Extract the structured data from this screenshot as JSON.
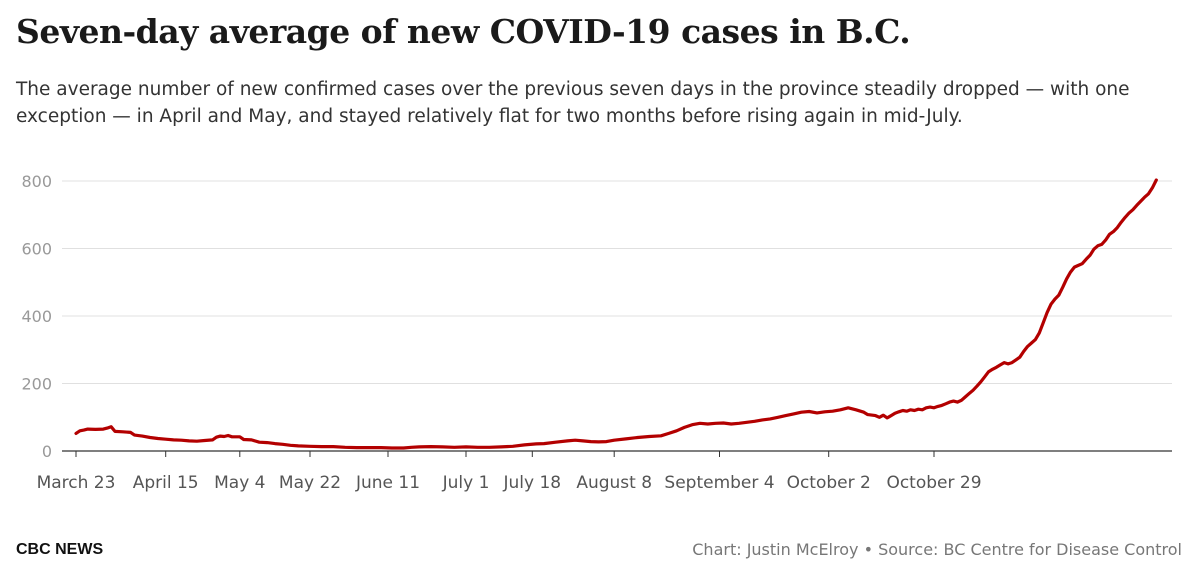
{
  "header": {
    "title": "Seven-day average of new COVID-19 cases in B.C.",
    "subtitle": "The average number of new confirmed cases over the previous seven days in the province steadily dropped — with one exception — in April and May, and stayed relatively flat for two months before rising again in mid-July."
  },
  "footer": {
    "brand": "CBC NEWS",
    "credit": "Chart: Justin McElroy • Source: BC Centre for Disease Control"
  },
  "chart_data": {
    "type": "line",
    "title": "Seven-day average of new COVID-19 cases in B.C.",
    "xlabel": "",
    "ylabel": "",
    "ylim": [
      0,
      800
    ],
    "yticks": [
      0,
      200,
      400,
      600,
      800
    ],
    "grid": true,
    "line_color": "#b30000",
    "grid_color": "#e0e0e0",
    "x_ticks": [
      {
        "label": "March 23",
        "day": 0
      },
      {
        "label": "April 15",
        "day": 23
      },
      {
        "label": "May 4",
        "day": 42
      },
      {
        "label": "May 22",
        "day": 60
      },
      {
        "label": "June 11",
        "day": 80
      },
      {
        "label": "July 1",
        "day": 100
      },
      {
        "label": "July 18",
        "day": 117
      },
      {
        "label": "August 8",
        "day": 138
      },
      {
        "label": "September 4",
        "day": 165
      },
      {
        "label": "October 2",
        "day": 193
      },
      {
        "label": "October 29",
        "day": 220
      }
    ],
    "series": [
      {
        "values": [
          [
            0,
            52
          ],
          [
            1,
            60
          ],
          [
            2,
            62
          ],
          [
            3,
            65
          ],
          [
            5,
            64
          ],
          [
            7,
            65
          ],
          [
            8,
            68
          ],
          [
            9,
            72
          ],
          [
            10,
            58
          ],
          [
            12,
            57
          ],
          [
            14,
            55
          ],
          [
            15,
            47
          ],
          [
            17,
            44
          ],
          [
            19,
            40
          ],
          [
            21,
            37
          ],
          [
            23,
            35
          ],
          [
            25,
            33
          ],
          [
            27,
            32
          ],
          [
            29,
            30
          ],
          [
            31,
            29
          ],
          [
            33,
            31
          ],
          [
            35,
            33
          ],
          [
            36,
            41
          ],
          [
            37,
            44
          ],
          [
            38,
            43
          ],
          [
            39,
            46
          ],
          [
            40,
            42
          ],
          [
            42,
            42
          ],
          [
            43,
            34
          ],
          [
            45,
            33
          ],
          [
            47,
            26
          ],
          [
            49,
            25
          ],
          [
            51,
            22
          ],
          [
            53,
            20
          ],
          [
            55,
            17
          ],
          [
            57,
            15
          ],
          [
            60,
            14
          ],
          [
            63,
            13
          ],
          [
            66,
            13
          ],
          [
            69,
            11
          ],
          [
            72,
            10
          ],
          [
            75,
            10
          ],
          [
            78,
            10
          ],
          [
            81,
            9
          ],
          [
            84,
            9
          ],
          [
            86,
            11
          ],
          [
            88,
            12
          ],
          [
            91,
            13
          ],
          [
            94,
            12
          ],
          [
            97,
            11
          ],
          [
            100,
            12
          ],
          [
            103,
            11
          ],
          [
            106,
            11
          ],
          [
            109,
            12
          ],
          [
            112,
            14
          ],
          [
            115,
            18
          ],
          [
            118,
            21
          ],
          [
            120,
            22
          ],
          [
            123,
            26
          ],
          [
            126,
            30
          ],
          [
            128,
            32
          ],
          [
            130,
            30
          ],
          [
            132,
            28
          ],
          [
            134,
            27
          ],
          [
            136,
            28
          ],
          [
            138,
            32
          ],
          [
            141,
            36
          ],
          [
            144,
            40
          ],
          [
            147,
            43
          ],
          [
            150,
            45
          ],
          [
            152,
            52
          ],
          [
            154,
            60
          ],
          [
            156,
            70
          ],
          [
            158,
            78
          ],
          [
            160,
            82
          ],
          [
            162,
            80
          ],
          [
            164,
            82
          ],
          [
            166,
            83
          ],
          [
            168,
            80
          ],
          [
            170,
            82
          ],
          [
            172,
            85
          ],
          [
            174,
            88
          ],
          [
            176,
            92
          ],
          [
            178,
            95
          ],
          [
            180,
            100
          ],
          [
            182,
            105
          ],
          [
            184,
            110
          ],
          [
            186,
            115
          ],
          [
            188,
            117
          ],
          [
            190,
            113
          ],
          [
            192,
            116
          ],
          [
            194,
            118
          ],
          [
            196,
            122
          ],
          [
            198,
            128
          ],
          [
            200,
            122
          ],
          [
            202,
            115
          ],
          [
            203,
            108
          ],
          [
            205,
            105
          ],
          [
            206,
            100
          ],
          [
            207,
            106
          ],
          [
            208,
            98
          ],
          [
            209,
            105
          ],
          [
            210,
            112
          ],
          [
            211,
            116
          ],
          [
            212,
            120
          ],
          [
            213,
            118
          ],
          [
            214,
            122
          ],
          [
            215,
            120
          ],
          [
            216,
            124
          ],
          [
            217,
            122
          ],
          [
            218,
            128
          ],
          [
            219,
            130
          ],
          [
            220,
            128
          ],
          [
            221,
            132
          ],
          [
            222,
            135
          ],
          [
            223,
            140
          ],
          [
            224,
            145
          ],
          [
            225,
            148
          ],
          [
            226,
            145
          ],
          [
            227,
            150
          ],
          [
            228,
            160
          ],
          [
            229,
            170
          ],
          [
            230,
            180
          ],
          [
            231,
            192
          ],
          [
            232,
            205
          ],
          [
            233,
            220
          ],
          [
            234,
            235
          ],
          [
            235,
            242
          ],
          [
            236,
            248
          ],
          [
            237,
            255
          ],
          [
            238,
            262
          ],
          [
            239,
            258
          ],
          [
            240,
            262
          ],
          [
            241,
            270
          ],
          [
            242,
            278
          ],
          [
            243,
            295
          ],
          [
            244,
            310
          ],
          [
            245,
            320
          ],
          [
            246,
            330
          ],
          [
            247,
            350
          ],
          [
            248,
            380
          ],
          [
            249,
            410
          ],
          [
            250,
            435
          ],
          [
            251,
            450
          ],
          [
            252,
            462
          ],
          [
            253,
            485
          ],
          [
            254,
            510
          ],
          [
            255,
            530
          ],
          [
            256,
            545
          ],
          [
            257,
            550
          ],
          [
            258,
            555
          ],
          [
            259,
            568
          ],
          [
            260,
            580
          ],
          [
            261,
            598
          ],
          [
            262,
            608
          ],
          [
            263,
            612
          ],
          [
            264,
            625
          ],
          [
            265,
            642
          ],
          [
            266,
            650
          ],
          [
            267,
            662
          ],
          [
            268,
            678
          ],
          [
            269,
            692
          ],
          [
            270,
            705
          ],
          [
            271,
            715
          ],
          [
            272,
            728
          ],
          [
            273,
            740
          ],
          [
            274,
            752
          ],
          [
            275,
            762
          ],
          [
            276,
            780
          ],
          [
            277,
            803
          ]
        ]
      }
    ]
  }
}
